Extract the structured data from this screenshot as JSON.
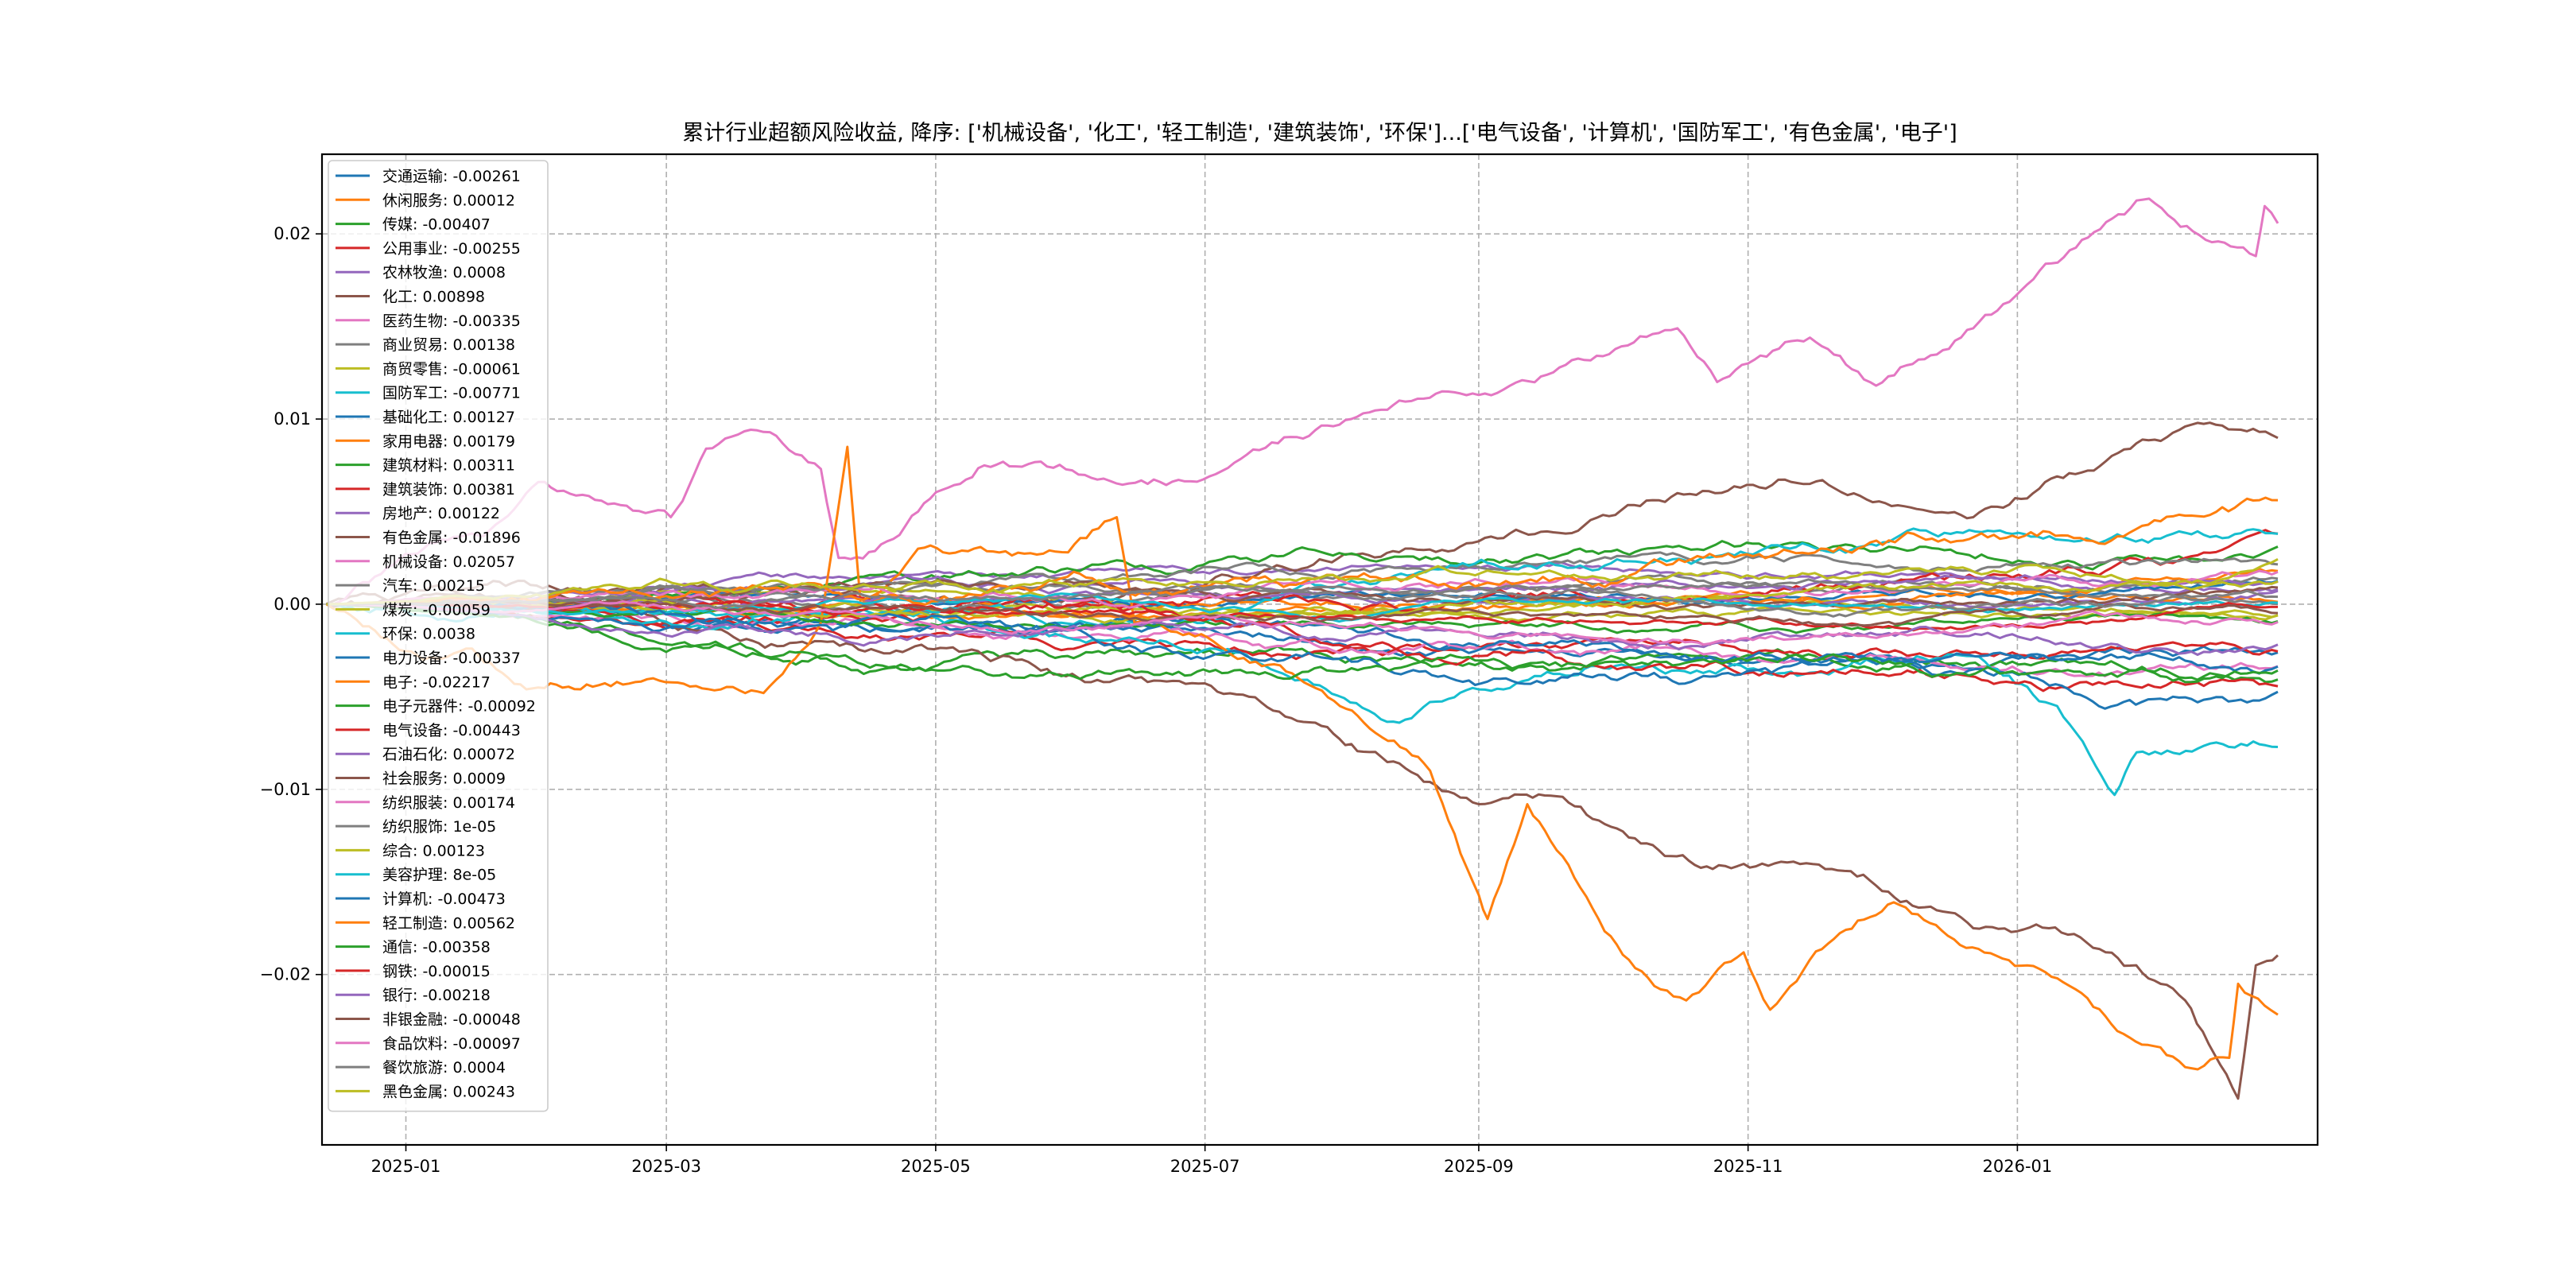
{
  "chart_data": {
    "type": "line",
    "title": "累计行业超额风险收益,  降序: ['机械设备', '化工', '轻工制造', '建筑装饰', '环保']...['电气设备', '计算机', '国防军工', '有色金属', '电子']",
    "xlabel": "",
    "ylabel": "",
    "x_range": [
      "2024-12-13",
      "2026-03-10"
    ],
    "data_start": "2024-12-14",
    "data_end": "2026-03-01",
    "ylim": [
      -0.0292,
      0.0243
    ],
    "yticks": [
      0.02,
      0.01,
      0.0,
      -0.01,
      -0.02
    ],
    "ytick_labels": [
      "0.02",
      "0.01",
      "0.00",
      "−0.01",
      "−0.02"
    ],
    "xticks": [
      "2025-01-01",
      "2025-03-01",
      "2025-05-01",
      "2025-07-01",
      "2025-09-01",
      "2025-11-01",
      "2026-01-01"
    ],
    "xtick_labels": [
      "2025-01",
      "2025-03",
      "2025-05",
      "2025-07",
      "2025-09",
      "2025-11",
      "2026-01"
    ],
    "grid": true,
    "legend_position": "upper-left",
    "palette": [
      "#1f77b4",
      "#ff7f0e",
      "#2ca02c",
      "#d62728",
      "#9467bd",
      "#8c564b",
      "#e377c2",
      "#7f7f7f",
      "#bcbd22",
      "#17becf"
    ],
    "series": [
      {
        "name": "交通运输",
        "label": "交通运输: -0.00261",
        "final": -0.00261
      },
      {
        "name": "休闲服务",
        "label": "休闲服务: 0.00012",
        "final": 0.00012
      },
      {
        "name": "传媒",
        "label": "传媒: -0.00407",
        "final": -0.00407
      },
      {
        "name": "公用事业",
        "label": "公用事业: -0.00255",
        "final": -0.00255
      },
      {
        "name": "农林牧渔",
        "label": "农林牧渔: 0.0008",
        "final": 0.0008
      },
      {
        "name": "化工",
        "label": "化工: 0.00898",
        "final": 0.00898,
        "points": [
          [
            "2024-12-14",
            0
          ],
          [
            "2025-04-05",
            0.0008
          ],
          [
            "2025-07-02",
            0.0012
          ],
          [
            "2025-09-01",
            0.0034
          ],
          [
            "2025-10-16",
            0.006
          ],
          [
            "2025-11-15",
            0.0065
          ],
          [
            "2025-12-22",
            0.0047
          ],
          [
            "2026-01-10",
            0.0069
          ],
          [
            "2026-02-08",
            0.0096
          ],
          [
            "2026-03-01",
            0.00898
          ]
        ]
      },
      {
        "name": "医药生物",
        "label": "医药生物: -0.00335",
        "final": -0.00335
      },
      {
        "name": "商业贸易",
        "label": "商业贸易: 0.00138",
        "final": 0.00138
      },
      {
        "name": "商贸零售",
        "label": "商贸零售: -0.00061",
        "final": -0.00061
      },
      {
        "name": "国防军工",
        "label": "国防军工: -0.00771",
        "final": -0.00771,
        "points": [
          [
            "2024-12-14",
            0
          ],
          [
            "2025-04-05",
            -0.0005
          ],
          [
            "2025-07-02",
            -0.0024
          ],
          [
            "2025-08-14",
            -0.0064
          ],
          [
            "2025-09-01",
            -0.0046
          ],
          [
            "2025-10-09",
            -0.0033
          ],
          [
            "2025-11-15",
            -0.0037
          ],
          [
            "2025-12-22",
            -0.0028
          ],
          [
            "2026-01-10",
            -0.0055
          ],
          [
            "2026-01-23",
            -0.0103
          ],
          [
            "2026-01-28",
            -0.008
          ],
          [
            "2026-03-01",
            -0.00771
          ]
        ]
      },
      {
        "name": "基础化工",
        "label": "基础化工: 0.00127",
        "final": 0.00127
      },
      {
        "name": "家用电器",
        "label": "家用电器: 0.00179",
        "final": 0.00179
      },
      {
        "name": "建筑材料",
        "label": "建筑材料: 0.00311",
        "final": 0.00311
      },
      {
        "name": "建筑装饰",
        "label": "建筑装饰: 0.00381",
        "final": 0.00381
      },
      {
        "name": "房地产",
        "label": "房地产: 0.00122",
        "final": 0.00122
      },
      {
        "name": "有色金属",
        "label": "有色金属: -0.01896",
        "final": -0.01896,
        "points": [
          [
            "2024-12-14",
            0
          ],
          [
            "2025-01-05",
            0.0005
          ],
          [
            "2025-04-05",
            -0.002
          ],
          [
            "2025-05-12",
            -0.0028
          ],
          [
            "2025-06-18",
            -0.0042
          ],
          [
            "2025-07-11",
            -0.005
          ],
          [
            "2025-07-26",
            -0.0064
          ],
          [
            "2025-08-14",
            -0.0086
          ],
          [
            "2025-09-01",
            -0.0108
          ],
          [
            "2025-09-20",
            -0.0104
          ],
          [
            "2025-10-05",
            -0.0126
          ],
          [
            "2025-10-24",
            -0.0143
          ],
          [
            "2025-11-07",
            -0.014
          ],
          [
            "2025-11-30",
            -0.0152
          ],
          [
            "2025-12-22",
            -0.0175
          ],
          [
            "2026-01-21",
            -0.0188
          ],
          [
            "2026-02-08",
            -0.0214
          ],
          [
            "2026-02-20",
            -0.0267
          ],
          [
            "2026-02-24",
            -0.0195
          ],
          [
            "2026-03-01",
            -0.01896
          ]
        ]
      },
      {
        "name": "机械设备",
        "label": "机械设备: 0.02057",
        "final": 0.02057,
        "points": [
          [
            "2024-12-14",
            0
          ],
          [
            "2025-01-05",
            0.003
          ],
          [
            "2025-01-20",
            0.004
          ],
          [
            "2025-01-31",
            0.0066
          ],
          [
            "2025-03-02",
            0.0047
          ],
          [
            "2025-03-10",
            0.0084
          ],
          [
            "2025-03-23",
            0.0093
          ],
          [
            "2025-04-05",
            0.0073
          ],
          [
            "2025-04-09",
            0.0025
          ],
          [
            "2025-04-20",
            0.0034
          ],
          [
            "2025-04-27",
            0.005
          ],
          [
            "2025-05-12",
            0.0075
          ],
          [
            "2025-06-18",
            0.0065
          ],
          [
            "2025-07-02",
            0.0069
          ],
          [
            "2025-07-26",
            0.0094
          ],
          [
            "2025-08-14",
            0.011
          ],
          [
            "2025-09-01",
            0.0113
          ],
          [
            "2025-10-16",
            0.0149
          ],
          [
            "2025-10-25",
            0.012
          ],
          [
            "2025-11-15",
            0.0144
          ],
          [
            "2025-11-30",
            0.0118
          ],
          [
            "2025-12-22",
            0.0149
          ],
          [
            "2026-01-06",
            0.018
          ],
          [
            "2026-01-28",
            0.0218
          ],
          [
            "2026-02-24",
            0.0188
          ],
          [
            "2026-02-26",
            0.0215
          ],
          [
            "2026-03-01",
            0.02057
          ]
        ]
      },
      {
        "name": "汽车",
        "label": "汽车: 0.00215",
        "final": 0.00215
      },
      {
        "name": "煤炭",
        "label": "煤炭: -0.00059",
        "final": -0.00059
      },
      {
        "name": "环保",
        "label": "环保: 0.0038",
        "final": 0.0038
      },
      {
        "name": "电力设备",
        "label": "电力设备: -0.00337",
        "final": -0.00337
      },
      {
        "name": "电子",
        "label": "电子: -0.02217",
        "final": -0.02217,
        "points": [
          [
            "2024-12-14",
            0
          ],
          [
            "2025-01-05",
            -0.003
          ],
          [
            "2025-01-16",
            -0.0024
          ],
          [
            "2025-01-31",
            -0.0045
          ],
          [
            "2025-02-26",
            -0.004
          ],
          [
            "2025-03-23",
            -0.0048
          ],
          [
            "2025-04-05",
            -0.001
          ],
          [
            "2025-04-11",
            0.0085
          ],
          [
            "2025-04-14",
            0.0
          ],
          [
            "2025-04-27",
            0.003
          ],
          [
            "2025-05-31",
            0.0028
          ],
          [
            "2025-06-11",
            0.0047
          ],
          [
            "2025-06-15",
            -0.001
          ],
          [
            "2025-07-18",
            -0.0033
          ],
          [
            "2025-08-06",
            -0.0064
          ],
          [
            "2025-08-21",
            -0.009
          ],
          [
            "2025-09-01",
            -0.0157
          ],
          [
            "2025-09-03",
            -0.017
          ],
          [
            "2025-09-12",
            -0.0108
          ],
          [
            "2025-09-24",
            -0.0153
          ],
          [
            "2025-10-05",
            -0.0192
          ],
          [
            "2025-10-18",
            -0.0214
          ],
          [
            "2025-10-31",
            -0.0188
          ],
          [
            "2025-11-06",
            -0.0219
          ],
          [
            "2025-11-15",
            -0.0192
          ],
          [
            "2025-12-04",
            -0.0161
          ],
          [
            "2025-12-19",
            -0.0184
          ],
          [
            "2026-01-06",
            -0.0197
          ],
          [
            "2026-01-25",
            -0.0232
          ],
          [
            "2026-02-08",
            -0.025
          ],
          [
            "2026-02-18",
            -0.0245
          ],
          [
            "2026-02-20",
            -0.0205
          ],
          [
            "2026-03-01",
            -0.02217
          ]
        ]
      },
      {
        "name": "电子元器件",
        "label": "电子元器件: -0.00092",
        "final": -0.00092
      },
      {
        "name": "电气设备",
        "label": "电气设备: -0.00443",
        "final": -0.00443
      },
      {
        "name": "石油石化",
        "label": "石油石化: 0.00072",
        "final": 0.00072
      },
      {
        "name": "社会服务",
        "label": "社会服务: 0.0009",
        "final": 0.0009
      },
      {
        "name": "纺织服装",
        "label": "纺织服装: 0.00174",
        "final": 0.00174
      },
      {
        "name": "纺织服饰",
        "label": "纺织服饰: 1e-05",
        "final": 1e-05
      },
      {
        "name": "综合",
        "label": "综合: 0.00123",
        "final": 0.00123
      },
      {
        "name": "美容护理",
        "label": "美容护理: 8e-05",
        "final": 8e-05
      },
      {
        "name": "计算机",
        "label": "计算机: -0.00473",
        "final": -0.00473
      },
      {
        "name": "轻工制造",
        "label": "轻工制造: 0.00562",
        "final": 0.00562
      },
      {
        "name": "通信",
        "label": "通信: -0.00358",
        "final": -0.00358
      },
      {
        "name": "钢铁",
        "label": "钢铁: -0.00015",
        "final": -0.00015
      },
      {
        "name": "银行",
        "label": "银行: -0.00218",
        "final": -0.00218
      },
      {
        "name": "非银金融",
        "label": "非银金融: -0.00048",
        "final": -0.00048
      },
      {
        "name": "食品饮料",
        "label": "食品饮料: -0.00097",
        "final": -0.00097
      },
      {
        "name": "餐饮旅游",
        "label": "餐饮旅游: 0.0004",
        "final": 0.0004
      },
      {
        "name": "黑色金属",
        "label": "黑色金属: 0.00243",
        "final": 0.00243
      }
    ]
  }
}
